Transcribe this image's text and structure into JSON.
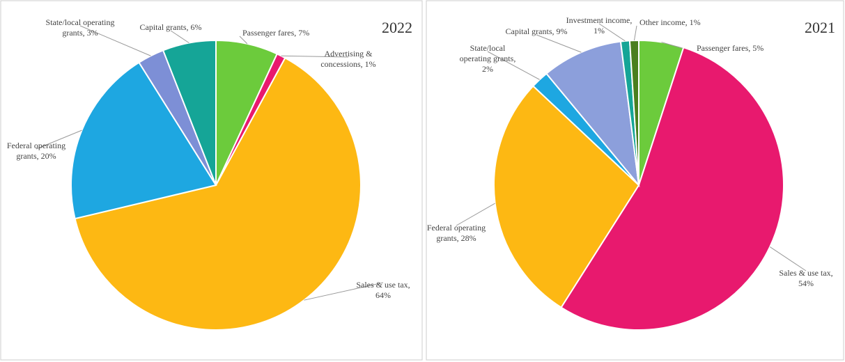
{
  "chart_data": [
    {
      "type": "pie",
      "title": "2022",
      "value_labels": [
        "Passenger fares, 7%",
        "Advertising &\nconcessions, 1%",
        "Sales & use tax,\n64%",
        "Federal operating\ngrants, 20%",
        "State/local operating\ngrants, 3%",
        "Capital grants, 6%"
      ],
      "values": [
        7,
        1,
        64,
        20,
        3,
        6
      ],
      "colors": [
        "#6ccb3c",
        "#e8196e",
        "#fdb813",
        "#1ea7e1",
        "#7d8fd6",
        "#15a597"
      ]
    },
    {
      "type": "pie",
      "title": "2021",
      "value_labels": [
        "Passenger fares, 5%",
        "Sales & use tax,\n54%",
        "Federal operating\ngrants, 28%",
        "State/local\noperating grants,\n2%",
        "Capital grants, 9%",
        "Investment income,\n1%",
        "Other income, 1%"
      ],
      "values": [
        5,
        54,
        28,
        2,
        9,
        1,
        1
      ],
      "colors": [
        "#6ccb3c",
        "#e8196e",
        "#fdb813",
        "#1ea7e1",
        "#8c9fdb",
        "#15a597",
        "#4a7f1e"
      ]
    }
  ]
}
